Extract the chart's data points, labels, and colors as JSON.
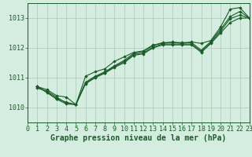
{
  "title": "Graphe pression niveau de la mer (hPa)",
  "xlabel": "Graphe pression niveau de la mer (hPa)",
  "xlim": [
    0,
    23
  ],
  "ylim": [
    1009.5,
    1013.5
  ],
  "yticks": [
    1010,
    1011,
    1012,
    1013
  ],
  "xticks": [
    0,
    1,
    2,
    3,
    4,
    5,
    6,
    7,
    8,
    9,
    10,
    11,
    12,
    13,
    14,
    15,
    16,
    17,
    18,
    19,
    20,
    21,
    22,
    23
  ],
  "background_color": "#d4ede0",
  "grid_color": "#a8c8b4",
  "line_color": "#1a5c28",
  "series": [
    [
      1010.7,
      1010.6,
      1010.4,
      1010.35,
      1010.1,
      1011.05,
      1011.2,
      1011.3,
      1011.55,
      1011.7,
      1011.85,
      1011.9,
      1012.1,
      1012.15,
      1012.2,
      1012.15,
      1012.2,
      1012.15,
      1012.25,
      1012.7,
      1013.3,
      1013.35,
      1013.0
    ],
    [
      1010.65,
      1010.55,
      1010.35,
      1010.15,
      1010.1,
      1010.85,
      1011.05,
      1011.2,
      1011.4,
      1011.58,
      1011.82,
      1011.88,
      1012.08,
      1012.18,
      1012.18,
      1012.18,
      1012.18,
      1011.92,
      1012.22,
      1012.62,
      1013.05,
      1013.22,
      1013.0
    ],
    [
      1010.7,
      1010.52,
      1010.3,
      1010.18,
      1010.1,
      1010.82,
      1011.02,
      1011.17,
      1011.37,
      1011.54,
      1011.78,
      1011.83,
      1012.03,
      1012.13,
      1012.13,
      1012.13,
      1012.13,
      1011.88,
      1012.18,
      1012.56,
      1012.98,
      1013.1,
      1013.0
    ],
    [
      1010.7,
      1010.5,
      1010.28,
      1010.12,
      1010.1,
      1010.8,
      1011.0,
      1011.15,
      1011.35,
      1011.5,
      1011.75,
      1011.8,
      1012.0,
      1012.1,
      1012.1,
      1012.1,
      1012.1,
      1011.85,
      1012.15,
      1012.5,
      1012.85,
      1013.0,
      1013.0
    ]
  ],
  "font_family": "monospace",
  "label_fontsize": 7,
  "tick_fontsize": 6,
  "title_fontweight": "bold"
}
